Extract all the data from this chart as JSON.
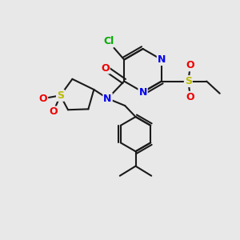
{
  "bg_color": "#e8e8e8",
  "bond_color": "#1a1a1a",
  "bond_width": 1.5,
  "atom_colors": {
    "N": "#0000ee",
    "O": "#ee0000",
    "S": "#bbbb00",
    "Cl": "#00aa00"
  },
  "font_size": 9.0
}
